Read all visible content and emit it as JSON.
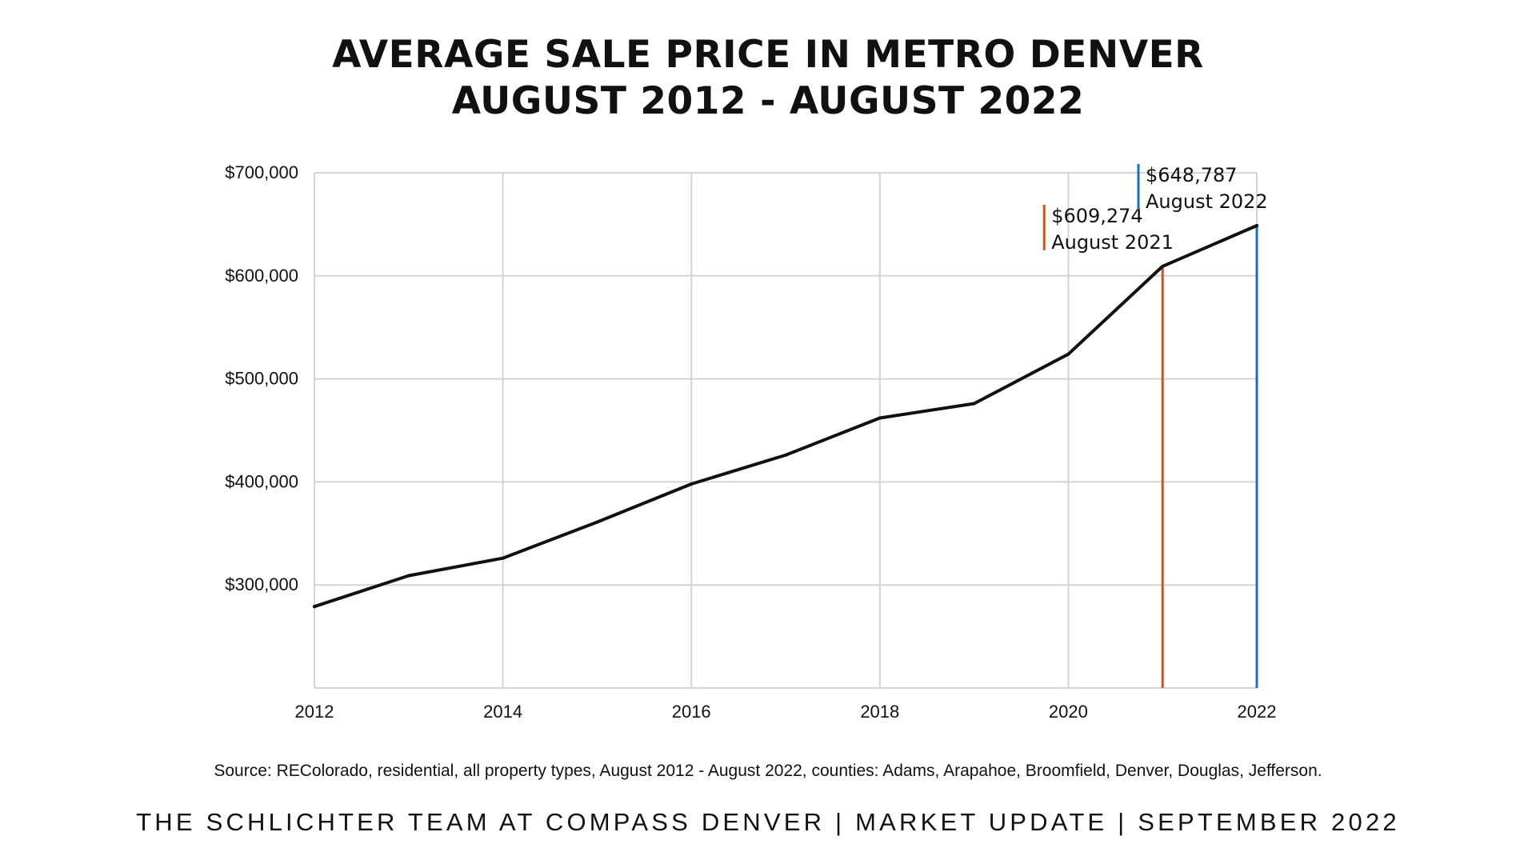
{
  "title": {
    "line1": "AVERAGE SALE PRICE IN METRO DENVER",
    "line2": "AUGUST 2012 - AUGUST 2022"
  },
  "chart_data": {
    "type": "line",
    "title": "AVERAGE SALE PRICE IN METRO DENVER AUGUST 2012 - AUGUST 2022",
    "xlabel": "",
    "ylabel": "",
    "xlim": [
      2012,
      2022
    ],
    "ylim": [
      200000,
      700000
    ],
    "grid": true,
    "x_ticks": [
      2012,
      2014,
      2016,
      2018,
      2020,
      2022
    ],
    "x_tick_labels": [
      "2012",
      "2014",
      "2016",
      "2018",
      "2020",
      "2022"
    ],
    "y_ticks": [
      300000,
      400000,
      500000,
      600000,
      700000
    ],
    "y_tick_labels": [
      "$300,000",
      "$400,000",
      "$500,000",
      "$600,000",
      "$700,000"
    ],
    "series": [
      {
        "name": "Average Sale Price",
        "color": "#111111",
        "x": [
          2012,
          2013,
          2014,
          2015,
          2016,
          2017,
          2018,
          2019,
          2020,
          2021,
          2022
        ],
        "y": [
          279000,
          309000,
          326000,
          361000,
          398000,
          426000,
          462000,
          476000,
          524000,
          609274,
          648787
        ]
      }
    ],
    "annotations": [
      {
        "x": 2021,
        "y": 609274,
        "value_label": "$609,274",
        "period_label": "August 2021",
        "color": "#c0582a"
      },
      {
        "x": 2022,
        "y": 648787,
        "value_label": "$648,787",
        "period_label": "August 2022",
        "color": "#1f6eb0"
      }
    ]
  },
  "source": "Source: REColorado, residential, all property types, August 2012 - August 2022, counties: Adams, Arapahoe, Broomfield, Denver, Douglas, Jefferson.",
  "footer": "THE SCHLICHTER TEAM AT COMPASS DENVER | MARKET UPDATE | SEPTEMBER 2022"
}
